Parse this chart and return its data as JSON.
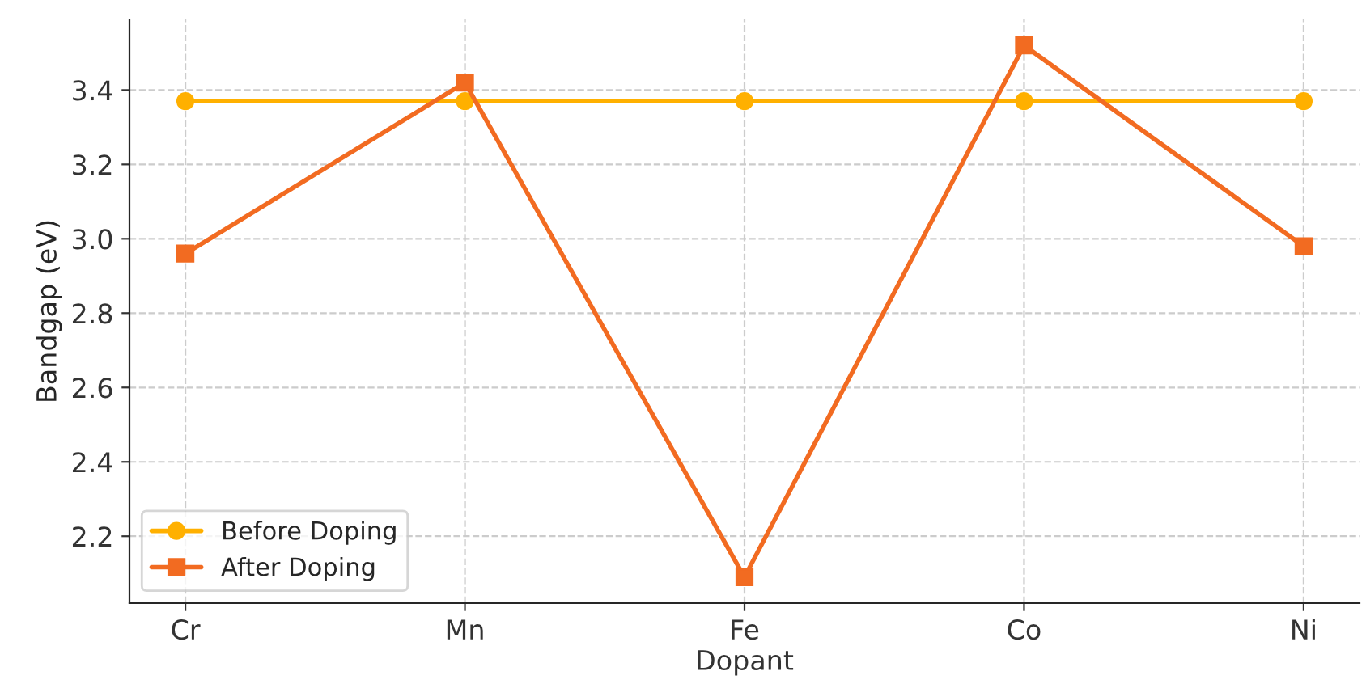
{
  "chart_data": {
    "type": "line",
    "xlabel": "Dopant",
    "ylabel": "Bandgap (eV)",
    "categories": [
      "Cr",
      "Mn",
      "Fe",
      "Co",
      "Ni"
    ],
    "series": [
      {
        "name": "Before Doping",
        "color": "#ffb000",
        "marker": "circle",
        "values": [
          3.37,
          3.37,
          3.37,
          3.37,
          3.37
        ]
      },
      {
        "name": "After Doping",
        "color": "#f26b21",
        "marker": "square",
        "values": [
          2.96,
          3.42,
          2.09,
          3.52,
          2.98
        ]
      }
    ],
    "ylim": [
      2.02,
      3.59
    ],
    "yticks": [
      2.2,
      2.4,
      2.6,
      2.8,
      {
        "value": 3.0,
        "label": "3.0"
      },
      3.2,
      3.4
    ],
    "grid": true,
    "legend": "bottom left",
    "line_style": "solid"
  }
}
